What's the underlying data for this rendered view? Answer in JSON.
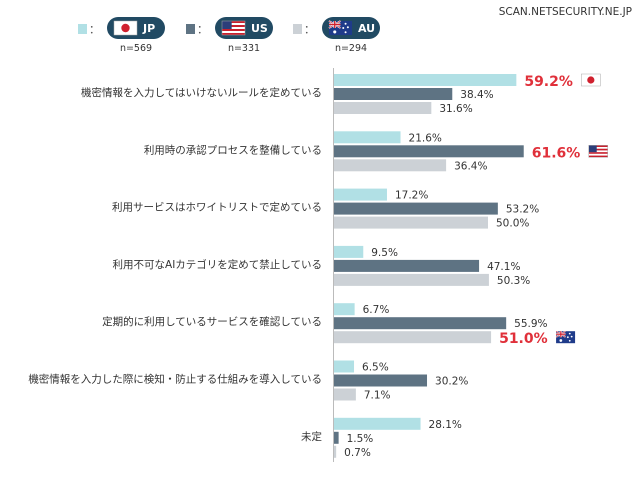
{
  "watermark": "SCAN.NETSECURITY.NE.JP",
  "legend": [
    {
      "code": "JP",
      "n": "n=569",
      "flag": "flag-jp-icon",
      "color": "#b1e0e5"
    },
    {
      "code": "US",
      "n": "n=331",
      "flag": "flag-us-icon",
      "color": "#5e7383"
    },
    {
      "code": "AU",
      "n": "n=294",
      "flag": "flag-au-icon",
      "color": "#ccd1d6"
    }
  ],
  "legend_colon": "：",
  "pill_color": "#214a63",
  "highlight_color": "#e0303a",
  "chart_data": {
    "type": "bar",
    "orientation": "horizontal",
    "categories": [
      "機密情報を入力してはいけないルールを定めている",
      "利用時の承認プロセスを整備している",
      "利用サービスはホワイトリストで定めている",
      "利用不可なAIカテゴリを定めて禁止している",
      "定期的に利用しているサービスを確認している",
      "機密情報を入力した際に検知・防止する仕組みを導入している",
      "未定"
    ],
    "series": [
      {
        "name": "JP",
        "values": [
          59.2,
          21.6,
          17.2,
          9.5,
          6.7,
          6.5,
          28.1
        ],
        "labels": [
          "59.2%",
          "21.6%",
          "17.2%",
          "9.5%",
          "6.7%",
          "6.5%",
          "28.1%"
        ]
      },
      {
        "name": "US",
        "values": [
          38.4,
          61.6,
          53.2,
          47.1,
          55.9,
          30.2,
          1.5
        ],
        "labels": [
          "38.4%",
          "61.6%",
          "53.2%",
          "47.1%",
          "55.9%",
          "30.2%",
          "1.5%"
        ]
      },
      {
        "name": "AU",
        "values": [
          31.6,
          36.4,
          50.0,
          50.3,
          51.0,
          7.1,
          0.7
        ],
        "labels": [
          "31.6%",
          "36.4%",
          "50.0%",
          "50.3%",
          "51.0%",
          "7.1%",
          "0.7%"
        ]
      }
    ],
    "highlights": [
      {
        "category_index": 0,
        "series": "JP",
        "flag": "flag-jp-icon"
      },
      {
        "category_index": 1,
        "series": "US",
        "flag": "flag-us-icon"
      },
      {
        "category_index": 4,
        "series": "AU",
        "flag": "flag-au-icon"
      }
    ],
    "xlim": [
      0,
      100
    ],
    "grid": false,
    "legend_position": "top-left"
  }
}
